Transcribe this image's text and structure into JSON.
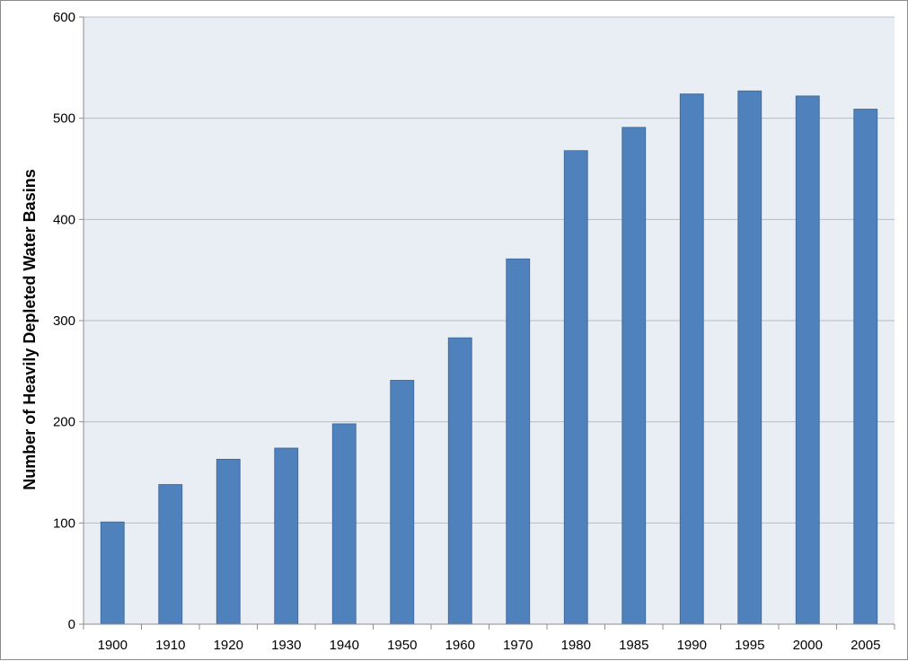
{
  "chart_data": {
    "type": "bar",
    "title": "",
    "xlabel": "",
    "ylabel": "Number of Heavily Depleted Water Basins",
    "ylim": [
      0,
      600
    ],
    "yticks": [
      0,
      100,
      200,
      300,
      400,
      500,
      600
    ],
    "grid": true,
    "legend": "none",
    "categories": [
      "1900",
      "1910",
      "1920",
      "1930",
      "1940",
      "1950",
      "1960",
      "1970",
      "1980",
      "1985",
      "1990",
      "1995",
      "2000",
      "2005"
    ],
    "values": [
      101,
      138,
      163,
      174,
      198,
      241,
      283,
      361,
      468,
      491,
      524,
      527,
      522,
      509
    ],
    "colors": {
      "bar": "#4f81bd",
      "bar_edge": "#3a6496",
      "plot_background": "#e9edf4",
      "gridline": "#b8bcc4",
      "axis": "#8c8c8c"
    }
  }
}
